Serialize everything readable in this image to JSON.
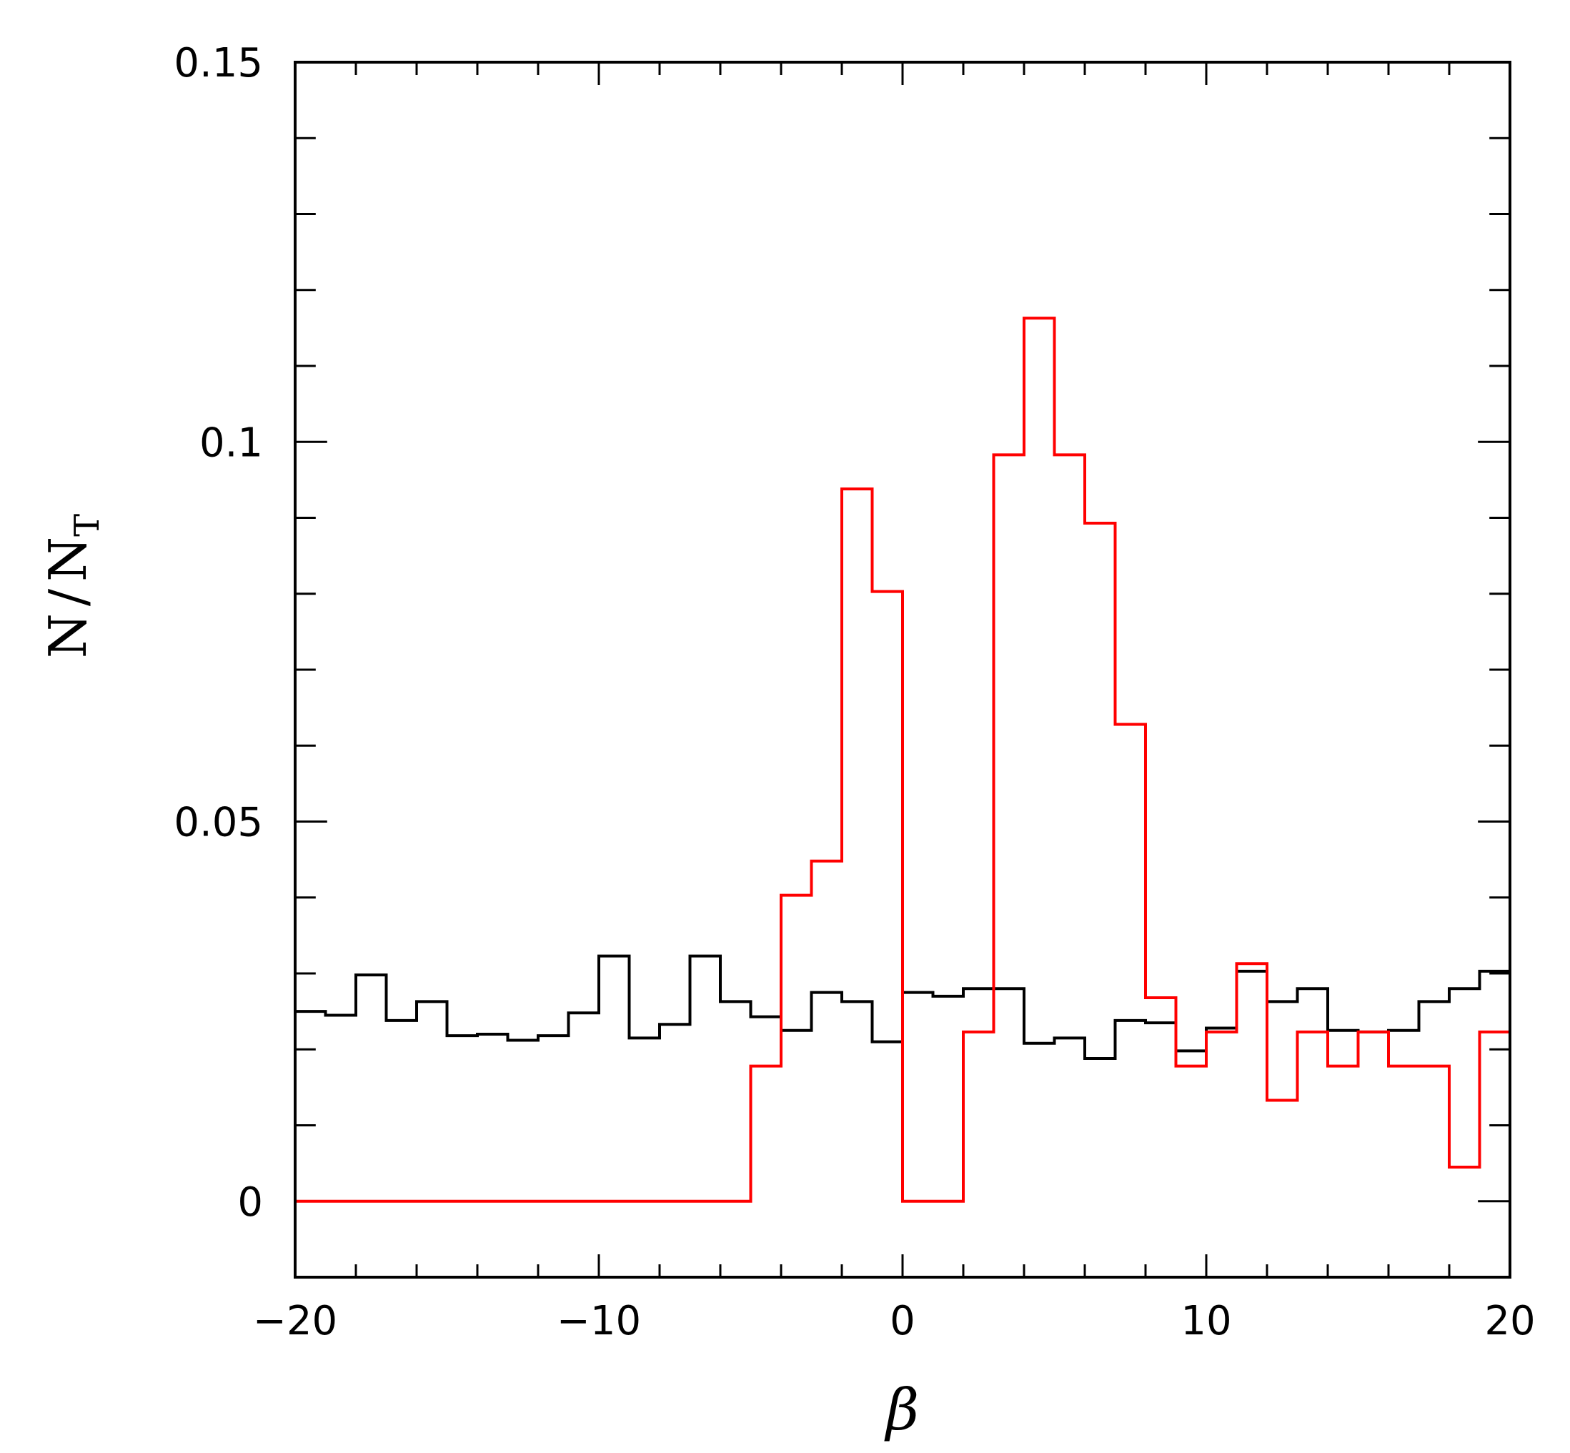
{
  "chart_data": {
    "type": "histogram-step",
    "xlabel": "β",
    "ylabel_main": "N",
    "ylabel_slash": "/",
    "ylabel_sub_letter": "N",
    "ylabel_sub": "T",
    "xlim": [
      -20,
      20
    ],
    "ylim": [
      -0.01,
      0.15
    ],
    "x_ticks": [
      -20,
      -10,
      0,
      10,
      20
    ],
    "x_tick_labels": [
      "−20",
      "−10",
      "0",
      "10",
      "20"
    ],
    "x_minor_step": 2,
    "y_ticks": [
      0,
      0.05,
      0.1,
      0.15
    ],
    "y_tick_labels": [
      "0",
      "0.05",
      "0.1",
      "0.15"
    ],
    "y_minor_step": 0.01,
    "bin_edges": [
      -20,
      -19,
      -18,
      -17,
      -16,
      -15,
      -14,
      -13,
      -12,
      -11,
      -10,
      -9,
      -8,
      -7,
      -6,
      -5,
      -4,
      -3,
      -2,
      -1,
      0,
      1,
      2,
      3,
      4,
      5,
      6,
      7,
      8,
      9,
      10,
      11,
      12,
      13,
      14,
      15,
      16,
      17,
      18,
      19,
      20
    ],
    "series": [
      {
        "color": "#000000",
        "values": [
          0.025,
          0.0245,
          0.0298,
          0.0238,
          0.0263,
          0.0218,
          0.022,
          0.0212,
          0.0218,
          0.0248,
          0.0323,
          0.0215,
          0.0233,
          0.0323,
          0.0263,
          0.0243,
          0.0225,
          0.0275,
          0.0263,
          0.021,
          0.0275,
          0.027,
          0.028,
          0.028,
          0.0208,
          0.0215,
          0.0188,
          0.0238,
          0.0235,
          0.0198,
          0.0228,
          0.0303,
          0.0263,
          0.028,
          0.0225,
          0.0223,
          0.0225,
          0.0263,
          0.028,
          0.0303
        ]
      },
      {
        "color": "#ff0000",
        "values": [
          0,
          0,
          0,
          0,
          0,
          0,
          0,
          0,
          0,
          0,
          0,
          0,
          0,
          0,
          0,
          0.0178,
          0.0403,
          0.0448,
          0.0938,
          0.0803,
          0,
          0,
          0.0223,
          0.0983,
          0.1163,
          0.0983,
          0.0893,
          0.0628,
          0.0268,
          0.0178,
          0.0223,
          0.0313,
          0.0133,
          0.0223,
          0.0178,
          0.0223,
          0.0178,
          0.0178,
          0.0045,
          0.0223
        ]
      }
    ]
  }
}
